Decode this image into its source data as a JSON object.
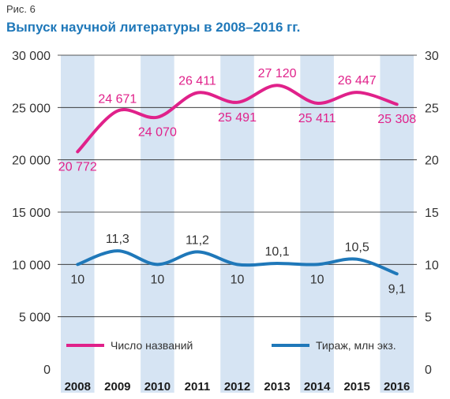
{
  "figure_label": "Рис. 6",
  "chart_data": {
    "type": "line",
    "title": "Выпуск научной литературы в 2008–2016 гг.",
    "categories": [
      "2008",
      "2009",
      "2010",
      "2011",
      "2012",
      "2013",
      "2014",
      "2015",
      "2016"
    ],
    "left_axis": {
      "ticks": [
        "30 000",
        "25 000",
        "20 000",
        "15 000",
        "10 000",
        "5 000",
        "0"
      ],
      "ylim": [
        0,
        30000
      ]
    },
    "right_axis": {
      "ticks": [
        "30",
        "25",
        "20",
        "15",
        "10",
        "5",
        "0"
      ],
      "ylim": [
        0,
        30
      ]
    },
    "series": [
      {
        "name": "Число названий",
        "axis": "left",
        "color": "#e0218a",
        "values": [
          20772,
          24671,
          24070,
          26411,
          25491,
          27120,
          25411,
          26447,
          25308
        ],
        "labels": [
          "20 772",
          "24 671",
          "24 070",
          "26 411",
          "25 491",
          "27 120",
          "25 411",
          "26 447",
          "25 308"
        ]
      },
      {
        "name": "Тираж, млн экз.",
        "axis": "right",
        "color": "#1f78b9",
        "values": [
          10,
          11.3,
          10,
          11.2,
          10,
          10.1,
          10,
          10.5,
          9.1
        ],
        "labels": [
          "10",
          "11,3",
          "10",
          "11,2",
          "10",
          "10,1",
          "10",
          "10,5",
          "9,1"
        ]
      }
    ],
    "grid": true,
    "legend_position": "bottom"
  }
}
